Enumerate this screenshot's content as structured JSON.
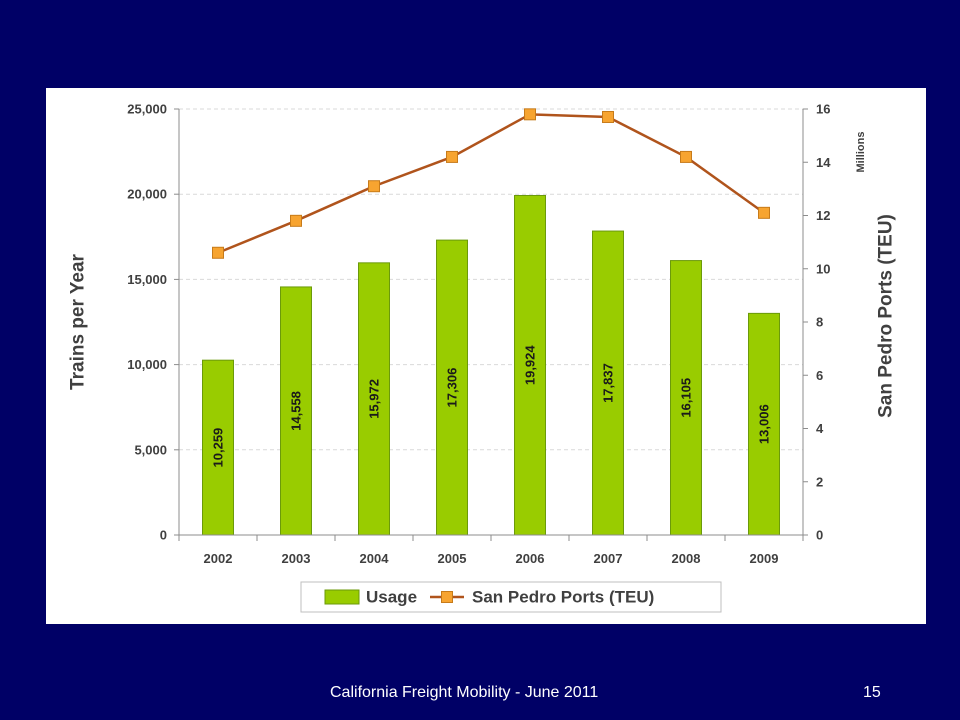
{
  "slide": {
    "footer": "California Freight Mobility - June  2011",
    "page_number": "15"
  },
  "colors": {
    "background": "#000066",
    "bar_fill": "#99cc00",
    "bar_stroke": "#6b9a0a",
    "line": "#b0541c",
    "marker": "#f7a430",
    "text": "#404040"
  },
  "chart_data": {
    "type": "bar",
    "categories": [
      "2002",
      "2003",
      "2004",
      "2005",
      "2006",
      "2007",
      "2008",
      "2009"
    ],
    "ylabel": "Trains per Year",
    "ylim": [
      0,
      25000
    ],
    "yticks": [
      0,
      5000,
      10000,
      15000,
      20000,
      25000
    ],
    "ytick_labels": [
      "0",
      "5,000",
      "10,000",
      "15,000",
      "20,000",
      "25,000"
    ],
    "y2label": "San Pedro Ports (TEU)",
    "y2_unit": "Millions",
    "y2lim": [
      0,
      16
    ],
    "y2ticks": [
      0,
      2,
      4,
      6,
      8,
      10,
      12,
      14,
      16
    ],
    "y2tick_labels": [
      "0",
      "2",
      "4",
      "6",
      "8",
      "10",
      "12",
      "14",
      "16"
    ],
    "grid": true,
    "legend_position": "bottom",
    "series": [
      {
        "name": "Usage",
        "type": "bar",
        "axis": "left",
        "values": [
          10259,
          14558,
          15972,
          17306,
          19924,
          17837,
          16105,
          13006
        ],
        "labels": [
          "10,259",
          "14,558",
          "15,972",
          "17,306",
          "19,924",
          "17,837",
          "16,105",
          "13,006"
        ]
      },
      {
        "name": "San Pedro Ports (TEU)",
        "type": "line",
        "axis": "right",
        "values": [
          10.6,
          11.8,
          13.1,
          14.2,
          15.8,
          15.7,
          14.2,
          12.1
        ]
      }
    ]
  }
}
